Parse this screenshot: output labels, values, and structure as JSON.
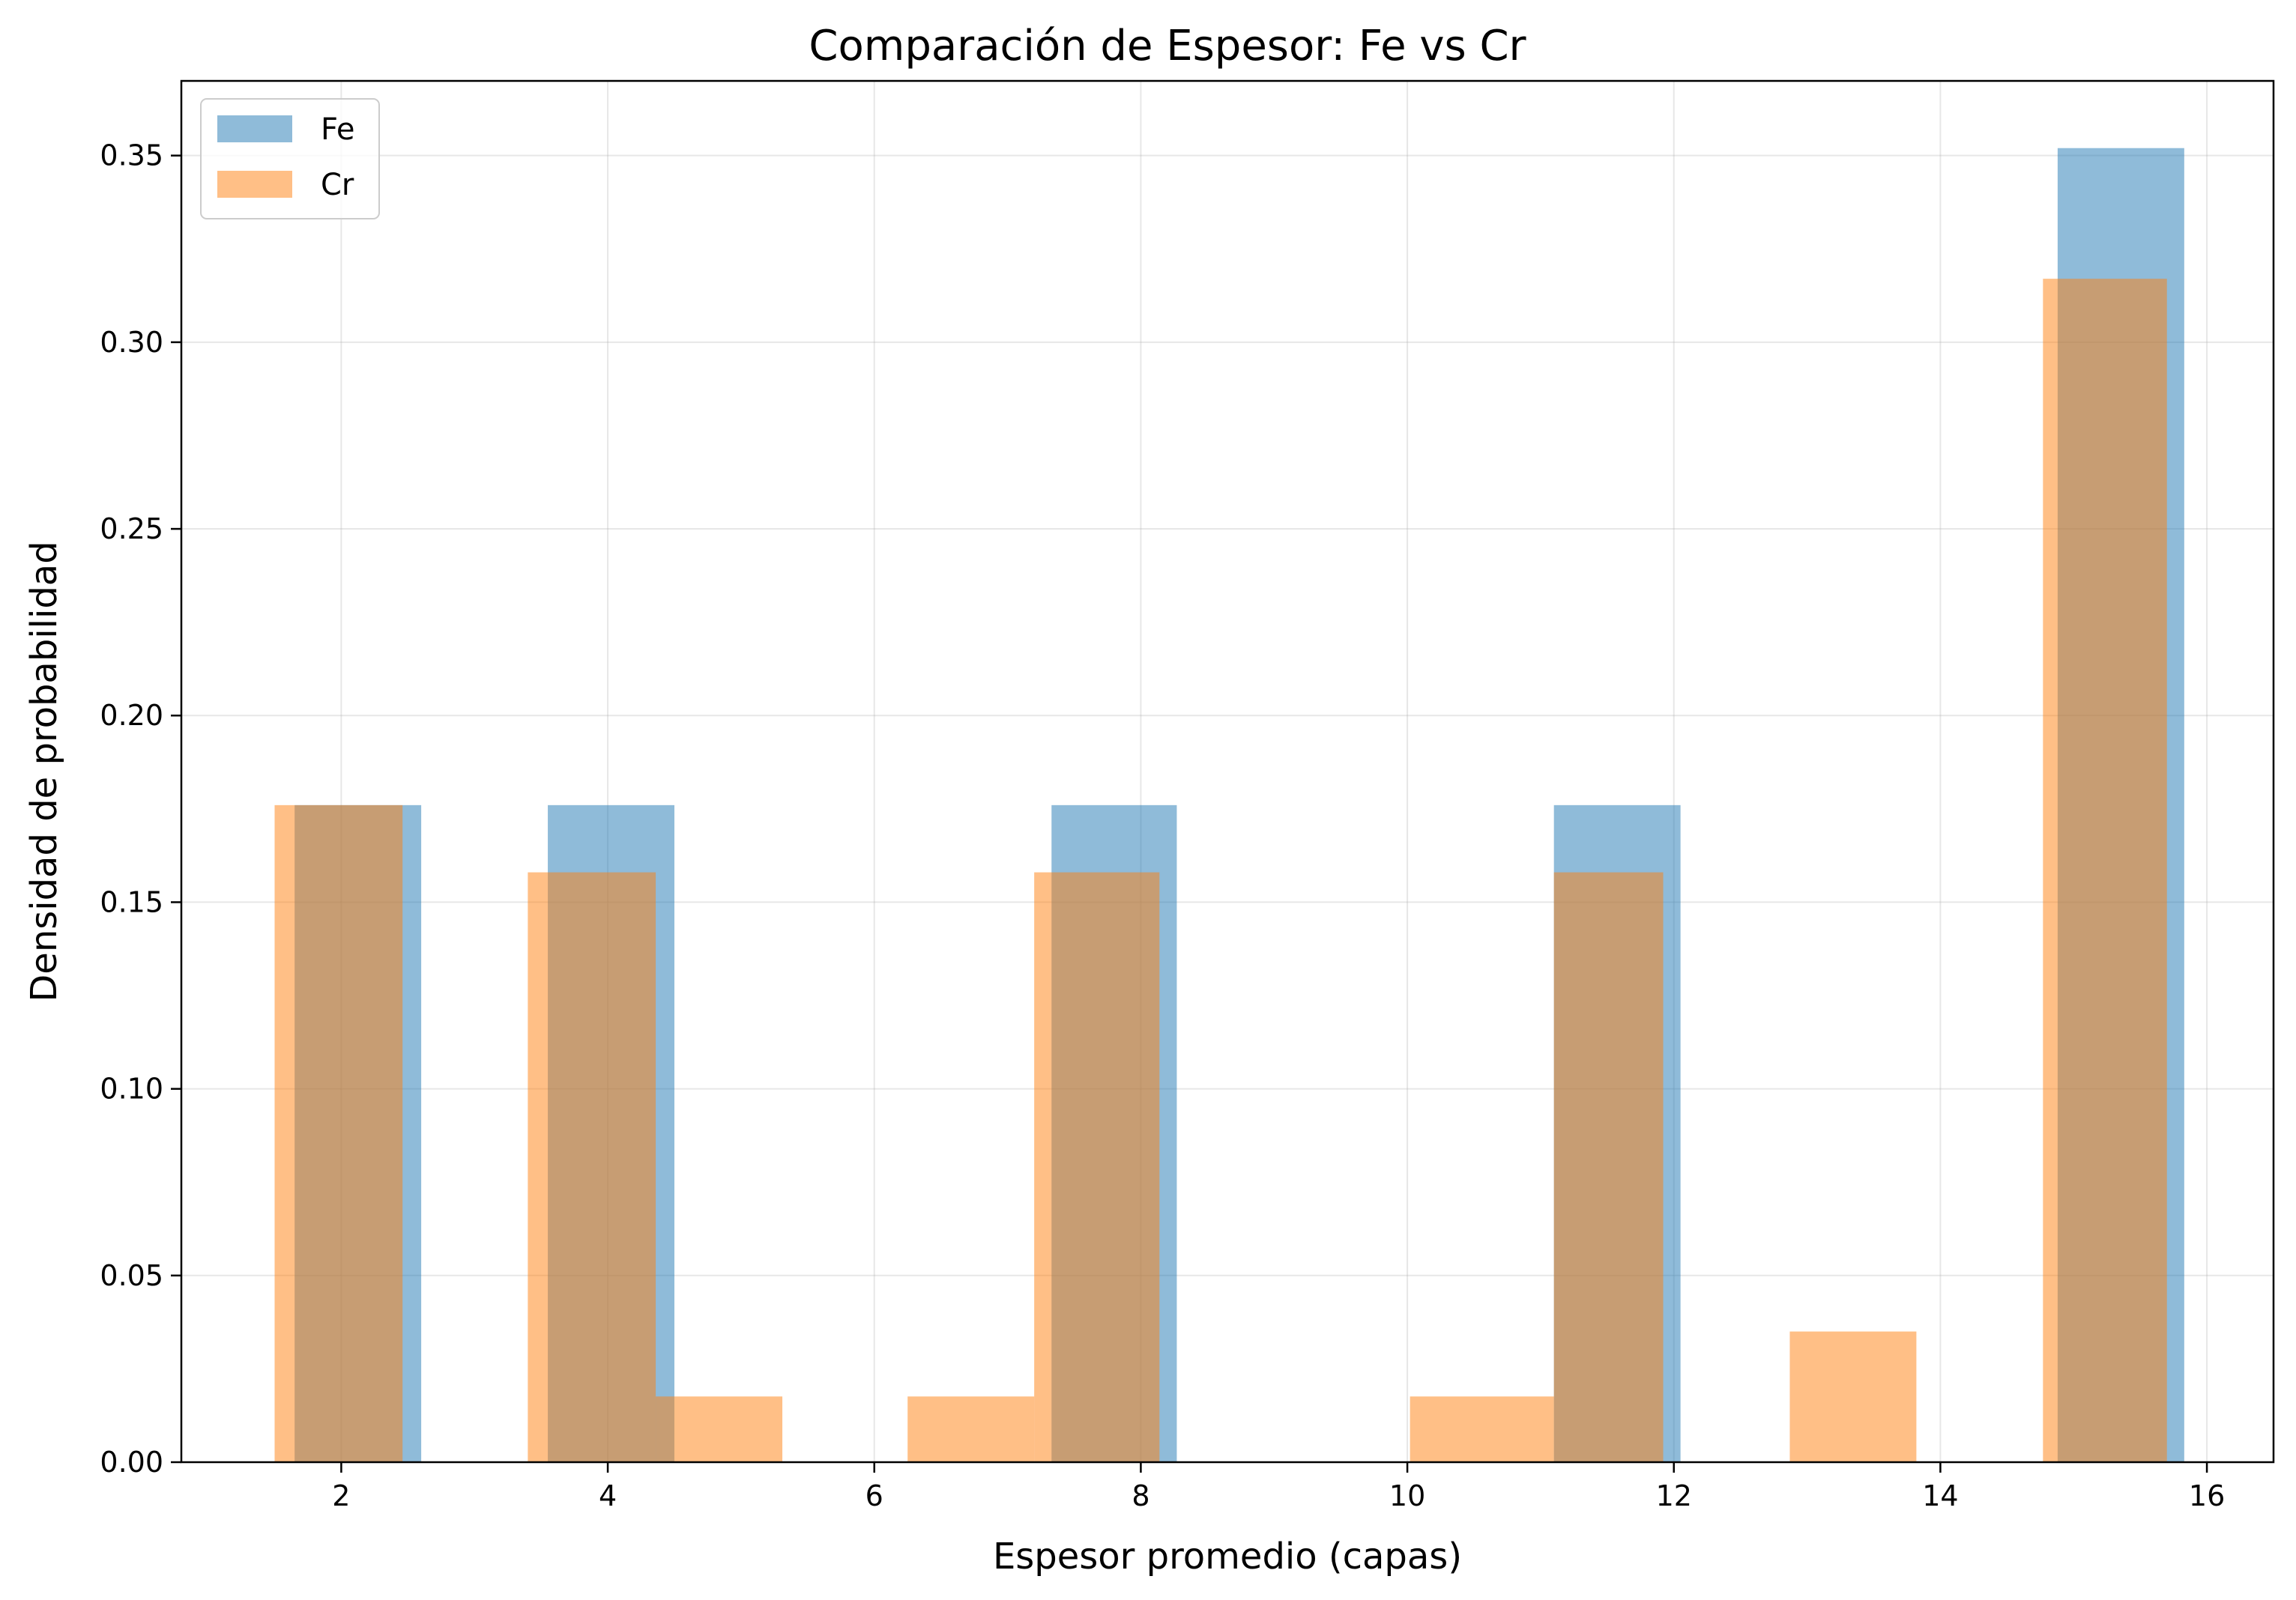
{
  "chart_data": {
    "type": "bar",
    "subtype": "histogram-overlay",
    "title": "Comparación de Espesor: Fe vs Cr",
    "xlabel": "Espesor promedio (capas)",
    "ylabel": "Densidad de probabilidad",
    "xlim": [
      0.8,
      16.5
    ],
    "ylim": [
      0,
      0.37
    ],
    "xticks": [
      2,
      4,
      6,
      8,
      10,
      12,
      14,
      16
    ],
    "xtick_labels": [
      "2",
      "4",
      "6",
      "8",
      "10",
      "12",
      "14",
      "16"
    ],
    "yticks": [
      0,
      0.05,
      0.1,
      0.15,
      0.2,
      0.25,
      0.3,
      0.35
    ],
    "ytick_labels": [
      "0.00",
      "0.05",
      "0.10",
      "0.15",
      "0.20",
      "0.25",
      "0.30",
      "0.35"
    ],
    "grid": true,
    "legend_position": "top-left",
    "series": [
      {
        "name": "Fe",
        "color": "#1f77b4",
        "opacity": 0.5,
        "bins": [
          {
            "x0": 1.65,
            "x1": 2.6,
            "value": 0.176
          },
          {
            "x0": 3.55,
            "x1": 4.5,
            "value": 0.176
          },
          {
            "x0": 7.33,
            "x1": 8.27,
            "value": 0.176
          },
          {
            "x0": 11.1,
            "x1": 12.05,
            "value": 0.176
          },
          {
            "x0": 14.88,
            "x1": 15.83,
            "value": 0.352
          }
        ]
      },
      {
        "name": "Cr",
        "color": "#ff7f0e",
        "opacity": 0.5,
        "bins": [
          {
            "x0": 1.5,
            "x1": 2.46,
            "value": 0.176
          },
          {
            "x0": 3.4,
            "x1": 4.36,
            "value": 0.158
          },
          {
            "x0": 4.36,
            "x1": 5.31,
            "value": 0.0176
          },
          {
            "x0": 6.25,
            "x1": 7.2,
            "value": 0.0176
          },
          {
            "x0": 7.2,
            "x1": 8.14,
            "value": 0.158
          },
          {
            "x0": 10.02,
            "x1": 11.1,
            "value": 0.0176
          },
          {
            "x0": 11.1,
            "x1": 11.92,
            "value": 0.158
          },
          {
            "x0": 12.87,
            "x1": 13.82,
            "value": 0.035
          },
          {
            "x0": 14.77,
            "x1": 15.7,
            "value": 0.317
          }
        ]
      }
    ]
  }
}
